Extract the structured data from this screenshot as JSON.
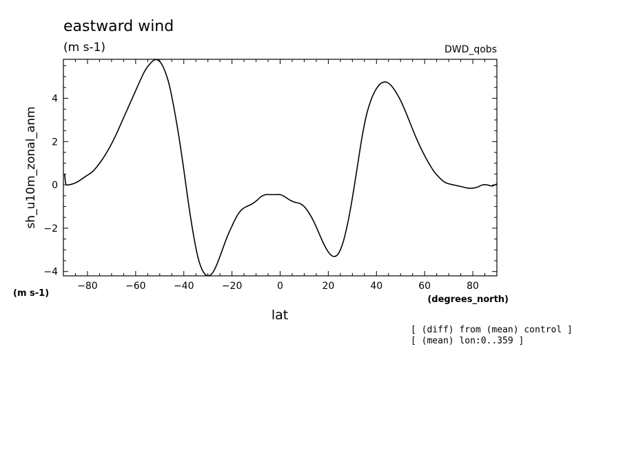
{
  "chart_data": {
    "type": "line",
    "title": "eastward wind",
    "units_label": "(m s-1)",
    "dataset_label": "DWD_qobs",
    "ylabel": "sh_u10m_zonal_anm",
    "xlabel": "lat",
    "x_units": "(degrees_north)",
    "y_units": "(m s-1)",
    "xlim": [
      -90,
      90
    ],
    "ylim": [
      -4.2,
      5.8
    ],
    "x_ticks": [
      -80,
      -60,
      -40,
      -20,
      0,
      20,
      40,
      60,
      80
    ],
    "y_ticks": [
      -4,
      -2,
      0,
      2,
      4
    ],
    "grid": false,
    "line_color": "#000000",
    "notes": [
      "[ (diff) from (mean) control ]",
      "[ (mean) lon:0..359 ]"
    ],
    "series": [
      {
        "x": [
          -89.5,
          -89,
          -88,
          -86,
          -84,
          -82,
          -80,
          -78,
          -76,
          -74,
          -72,
          -70,
          -68,
          -66,
          -64,
          -62,
          -60,
          -58,
          -56,
          -54,
          -52,
          -50,
          -48,
          -46,
          -44,
          -42,
          -40,
          -38,
          -36,
          -34,
          -32,
          -30,
          -28,
          -26,
          -24,
          -22,
          -20,
          -18,
          -16,
          -14,
          -12,
          -10,
          -8,
          -6,
          -4,
          -2,
          0,
          2,
          4,
          6,
          8,
          10,
          12,
          14,
          16,
          18,
          20,
          22,
          24,
          26,
          28,
          30,
          32,
          34,
          36,
          38,
          40,
          42,
          44,
          46,
          48,
          50,
          52,
          54,
          56,
          58,
          60,
          62,
          64,
          66,
          68,
          70,
          72,
          74,
          76,
          78,
          80,
          82,
          84,
          86,
          88,
          90
        ],
        "y": [
          0.5,
          0.05,
          0.0,
          0.05,
          0.15,
          0.3,
          0.45,
          0.6,
          0.85,
          1.15,
          1.5,
          1.9,
          2.35,
          2.85,
          3.35,
          3.85,
          4.35,
          4.85,
          5.3,
          5.6,
          5.78,
          5.7,
          5.3,
          4.6,
          3.5,
          2.2,
          0.7,
          -0.9,
          -2.3,
          -3.4,
          -4.0,
          -4.2,
          -4.05,
          -3.6,
          -3.0,
          -2.4,
          -1.9,
          -1.45,
          -1.15,
          -1.0,
          -0.9,
          -0.75,
          -0.55,
          -0.45,
          -0.45,
          -0.45,
          -0.45,
          -0.55,
          -0.7,
          -0.8,
          -0.85,
          -1.0,
          -1.3,
          -1.7,
          -2.2,
          -2.7,
          -3.1,
          -3.3,
          -3.2,
          -2.7,
          -1.8,
          -0.6,
          0.8,
          2.2,
          3.3,
          4.0,
          4.45,
          4.7,
          4.75,
          4.6,
          4.3,
          3.9,
          3.4,
          2.85,
          2.3,
          1.8,
          1.35,
          0.95,
          0.6,
          0.35,
          0.15,
          0.05,
          0.0,
          -0.05,
          -0.1,
          -0.15,
          -0.15,
          -0.1,
          0.0,
          0.0,
          -0.05,
          0.05
        ]
      }
    ]
  }
}
